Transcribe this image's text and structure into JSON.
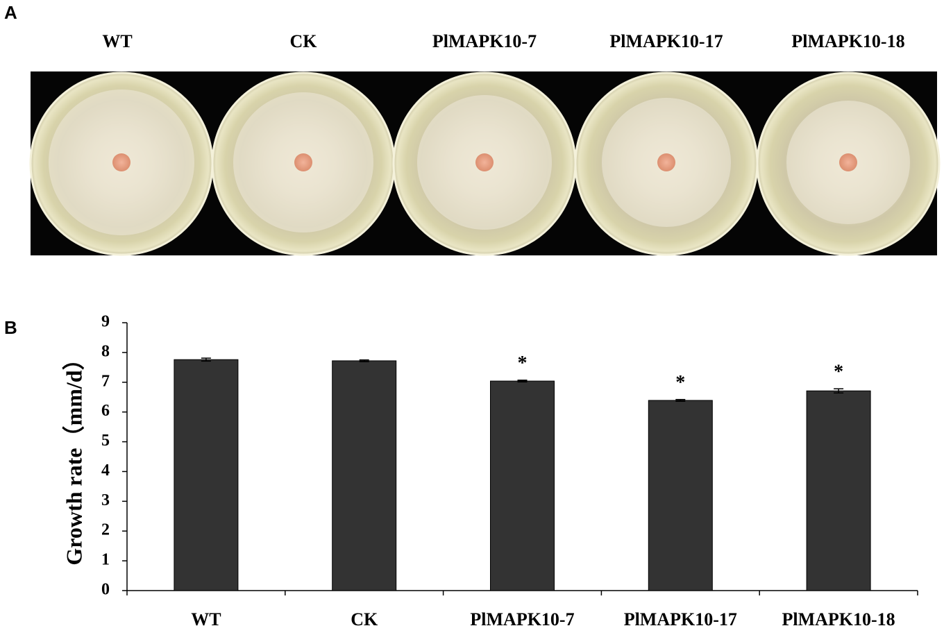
{
  "panel_labels": [
    "A",
    "B"
  ],
  "photo": {
    "labels": [
      "WT",
      "CK",
      "PlMAPK10-7",
      "PlMAPK10-17",
      "PlMAPK10-18"
    ]
  },
  "chart_data": {
    "type": "bar",
    "y_label": "Growth rate（mm/d）",
    "categories": [
      "WT",
      "CK",
      "PlMAPK10-7",
      "PlMAPK10-17",
      "PlMAPK10-18"
    ],
    "values": [
      7.76,
      7.72,
      7.04,
      6.39,
      6.71
    ],
    "errors": [
      0.05,
      0.03,
      0.03,
      0.03,
      0.07
    ],
    "significance": [
      null,
      null,
      "*",
      "*",
      "*"
    ],
    "color": "#333333",
    "ylim": [
      0,
      9
    ],
    "yticks": [
      0,
      1,
      2,
      3,
      4,
      5,
      6,
      7,
      8,
      9
    ]
  }
}
